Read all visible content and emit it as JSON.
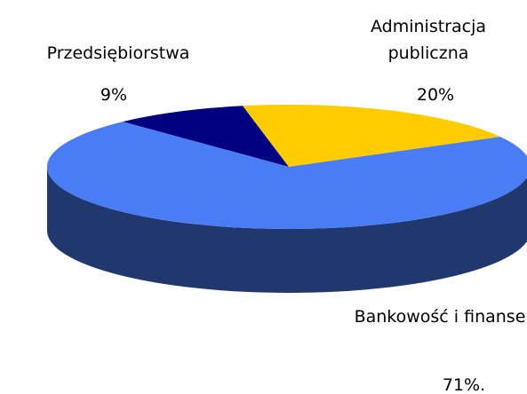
{
  "chart_data": {
    "type": "pie",
    "categories": [
      "Przedsiębiorstwa",
      "Administracja publiczna",
      "Bankowość i finanse"
    ],
    "values": [
      9,
      20,
      71
    ],
    "value_labels": [
      "9%",
      "20%",
      "71%."
    ],
    "colors": [
      "#000080",
      "#ffcc00",
      "#4a7cf5"
    ]
  }
}
